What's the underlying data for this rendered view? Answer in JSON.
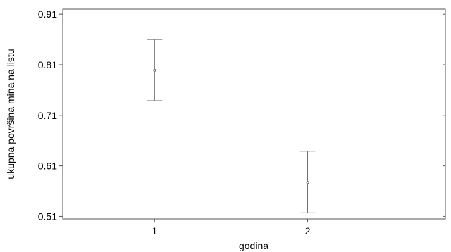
{
  "chart_data": {
    "type": "scatter",
    "subtype": "means-with-error-bars",
    "title": "",
    "xlabel": "godina",
    "ylabel": "ukupna površina mina na listu",
    "x_ticks": [
      "1",
      "2"
    ],
    "y_ticks": [
      "0.51",
      "0.61",
      "0.71",
      "0.81",
      "0.91"
    ],
    "xlim": [
      0.4,
      2.9
    ],
    "ylim": [
      0.505,
      0.92
    ],
    "grid": false,
    "legend": "none",
    "colors": {
      "line": "#6e6e6e",
      "axis": "#555555",
      "background": "#ffffff"
    },
    "points": [
      {
        "x": 1,
        "mean": 0.799,
        "lower": 0.739,
        "upper": 0.86
      },
      {
        "x": 2,
        "mean": 0.577,
        "lower": 0.517,
        "upper": 0.639
      }
    ]
  }
}
